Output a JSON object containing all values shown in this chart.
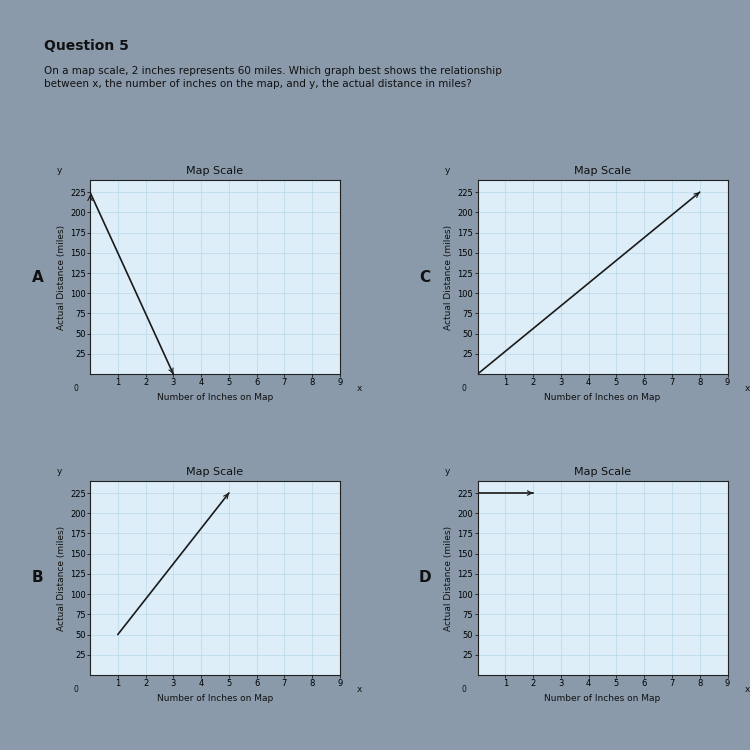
{
  "question": "Question 5",
  "question_text": "On a map scale, 2 inches represents 60 miles. Which graph best shows the relationship\nbetween x, the number of inches on the map, and y, the actual distance in miles?",
  "graphs": [
    {
      "label": "A",
      "title": "Map Scale",
      "xlabel": "Number of Inches on Map",
      "ylabel": "Actual Distance (miles)",
      "yticks": [
        25,
        50,
        75,
        100,
        125,
        150,
        175,
        200,
        225
      ],
      "xticks": [
        1,
        2,
        3,
        4,
        5,
        6,
        7,
        8,
        9
      ],
      "xlim": [
        0,
        9
      ],
      "ylim": [
        0,
        240
      ],
      "line_x": [
        0,
        3
      ],
      "line_y": [
        225,
        0
      ],
      "arrow_at_start": true,
      "start_arrow": true
    },
    {
      "label": "C",
      "title": "Map Scale",
      "xlabel": "Number of Inches on Map",
      "ylabel": "Actual Distance (miles)",
      "yticks": [
        25,
        50,
        75,
        100,
        125,
        150,
        175,
        200,
        225
      ],
      "xticks": [
        1,
        2,
        3,
        4,
        5,
        6,
        7,
        8,
        9
      ],
      "xlim": [
        0,
        9
      ],
      "ylim": [
        0,
        240
      ],
      "line_x": [
        0,
        8
      ],
      "line_y": [
        0,
        225
      ],
      "arrow_at_start": false,
      "start_arrow": false
    },
    {
      "label": "B",
      "title": "Map Scale",
      "xlabel": "Number of Inches on Map",
      "ylabel": "Actual Distance (miles)",
      "yticks": [
        25,
        50,
        75,
        100,
        125,
        150,
        175,
        200,
        225
      ],
      "xticks": [
        1,
        2,
        3,
        4,
        5,
        6,
        7,
        8,
        9
      ],
      "xlim": [
        0,
        9
      ],
      "ylim": [
        0,
        240
      ],
      "line_x": [
        1,
        5
      ],
      "line_y": [
        50,
        225
      ],
      "arrow_at_start": false,
      "start_arrow": false
    },
    {
      "label": "D",
      "title": "Map Scale",
      "xlabel": "Number of Inches on Map",
      "ylabel": "Actual Distance (miles)",
      "yticks": [
        25,
        50,
        75,
        100,
        125,
        150,
        175,
        200,
        225
      ],
      "xticks": [
        1,
        2,
        3,
        4,
        5,
        6,
        7,
        8,
        9
      ],
      "xlim": [
        0,
        9
      ],
      "ylim": [
        0,
        240
      ],
      "line_x": [
        0,
        0,
        2
      ],
      "line_y": [
        25,
        225,
        225
      ],
      "arrow_at_start": false,
      "start_arrow": false
    }
  ],
  "outer_bg": "#8a9aaa",
  "paper_bg": "#e8e0d0",
  "plot_bg": "#ddeef8",
  "grid_color": "#b8d8e8",
  "line_color": "#1a1a1a",
  "axis_color": "#222222",
  "title_fontsize": 8,
  "label_fontsize": 6.5,
  "tick_fontsize": 6,
  "question_fontsize": 8.5,
  "heading_fontsize": 10,
  "letter_fontsize": 11
}
